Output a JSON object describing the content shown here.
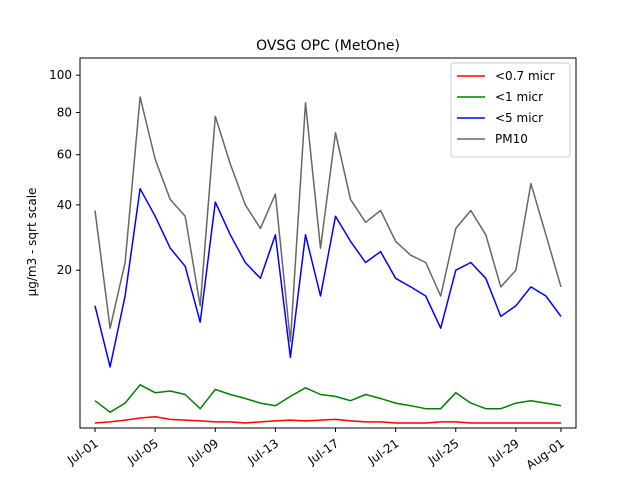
{
  "chart_data": {
    "type": "line",
    "title": "OVSG OPC (MetOne)",
    "xlabel": "",
    "ylabel": "µg/m3 - sqrt scale",
    "y_scale": "sqrt",
    "ylim": [
      0,
      110
    ],
    "xlim": [
      "2019-06-30",
      "2019-08-02"
    ],
    "y_ticks": [
      20,
      40,
      60,
      80,
      100
    ],
    "x_ticks": [
      {
        "date": "2019-07-01",
        "label": "Jul-01"
      },
      {
        "date": "2019-07-05",
        "label": "Jul-05"
      },
      {
        "date": "2019-07-09",
        "label": "Jul-09"
      },
      {
        "date": "2019-07-13",
        "label": "Jul-13"
      },
      {
        "date": "2019-07-17",
        "label": "Jul-17"
      },
      {
        "date": "2019-07-21",
        "label": "Jul-21"
      },
      {
        "date": "2019-07-25",
        "label": "Jul-25"
      },
      {
        "date": "2019-07-29",
        "label": "Jul-29"
      },
      {
        "date": "2019-08-01",
        "label": "Aug-01"
      }
    ],
    "x": [
      "2019-07-01",
      "2019-07-02",
      "2019-07-03",
      "2019-07-04",
      "2019-07-05",
      "2019-07-06",
      "2019-07-07",
      "2019-07-08",
      "2019-07-09",
      "2019-07-10",
      "2019-07-11",
      "2019-07-12",
      "2019-07-13",
      "2019-07-14",
      "2019-07-15",
      "2019-07-16",
      "2019-07-17",
      "2019-07-18",
      "2019-07-19",
      "2019-07-20",
      "2019-07-21",
      "2019-07-22",
      "2019-07-23",
      "2019-07-24",
      "2019-07-25",
      "2019-07-26",
      "2019-07-27",
      "2019-07-28",
      "2019-07-29",
      "2019-07-30",
      "2019-07-31",
      "2019-08-01"
    ],
    "legend_position": "top-right",
    "grid": false,
    "series": [
      {
        "name": "<0.7 micr",
        "color": "#ff0000",
        "values": [
          0.02,
          0.03,
          0.05,
          0.08,
          0.1,
          0.06,
          0.05,
          0.04,
          0.03,
          0.03,
          0.02,
          0.03,
          0.04,
          0.05,
          0.04,
          0.05,
          0.06,
          0.04,
          0.03,
          0.03,
          0.02,
          0.02,
          0.02,
          0.03,
          0.03,
          0.02,
          0.02,
          0.02,
          0.02,
          0.02,
          0.02,
          0.02
        ]
      },
      {
        "name": "<1 micr",
        "color": "#008000",
        "values": [
          0.6,
          0.2,
          0.5,
          1.5,
          1.0,
          1.1,
          0.9,
          0.3,
          1.2,
          0.9,
          0.7,
          0.5,
          0.4,
          0.8,
          1.3,
          0.9,
          0.8,
          0.6,
          0.9,
          0.7,
          0.5,
          0.4,
          0.3,
          0.3,
          1.0,
          0.5,
          0.3,
          0.3,
          0.5,
          0.6,
          0.5,
          0.4
        ]
      },
      {
        "name": "<5 micr",
        "color": "#0000ff",
        "values": [
          12,
          3,
          14,
          46,
          36,
          26,
          21,
          9,
          41,
          30,
          22,
          18,
          30,
          4,
          30,
          14,
          36,
          28,
          22,
          25,
          18,
          16,
          14,
          8,
          20,
          22,
          18,
          10,
          12,
          16,
          14,
          10
        ]
      },
      {
        "name": "PM10",
        "color": "#666666",
        "values": [
          38,
          8,
          22,
          88,
          58,
          42,
          36,
          12,
          78,
          56,
          40,
          32,
          44,
          6,
          85,
          26,
          70,
          42,
          34,
          38,
          28,
          24,
          22,
          14,
          32,
          38,
          30,
          16,
          20,
          48,
          30,
          16
        ]
      }
    ]
  }
}
